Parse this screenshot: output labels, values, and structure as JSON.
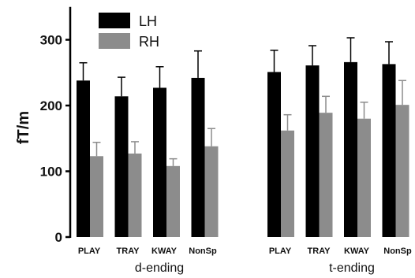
{
  "chart_data": {
    "type": "bar",
    "ylabel": "fT/m",
    "ylim": [
      0,
      350
    ],
    "yticks": [
      0,
      100,
      200,
      300
    ],
    "grid": false,
    "legend_position": "top-left",
    "groups": [
      {
        "name": "d-ending",
        "categories": [
          "PLAY",
          "TRAY",
          "KWAY",
          "NonSp"
        ]
      },
      {
        "name": "t-ending",
        "categories": [
          "PLAY",
          "TRAY",
          "KWAY",
          "NonSp"
        ]
      }
    ],
    "series": [
      {
        "name": "LH",
        "color": "#000000",
        "values": [
          238,
          214,
          227,
          242,
          251,
          261,
          266,
          263
        ],
        "errors": [
          27,
          29,
          32,
          41,
          33,
          30,
          37,
          34
        ]
      },
      {
        "name": "RH",
        "color": "#8c8c8c",
        "values": [
          123,
          127,
          108,
          138,
          162,
          189,
          180,
          201
        ],
        "errors": [
          21,
          18,
          11,
          27,
          24,
          25,
          25,
          37
        ]
      }
    ]
  }
}
